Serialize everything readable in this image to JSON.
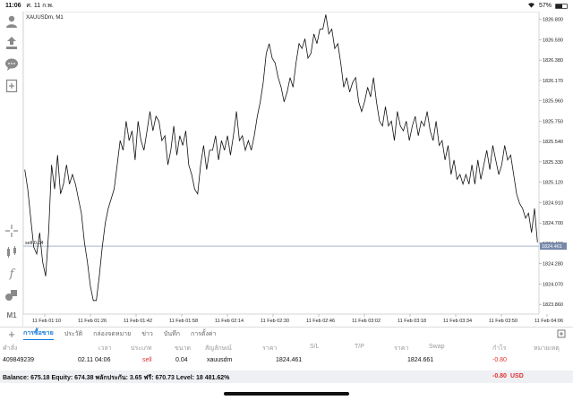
{
  "status": {
    "time": "11:06",
    "date": "ศ. 11 ก.พ.",
    "battery": "57%",
    "battery_level": 0.57
  },
  "toolbar": {
    "icons": [
      "person-icon",
      "trade-icon",
      "chat-icon",
      "add-chart-icon",
      "crosshair-icon",
      "indicators-icon",
      "function-icon",
      "objects-icon"
    ],
    "timeframe": "M1"
  },
  "chart": {
    "symbol_label": "XAUUSDm, M1",
    "sell_line_label": "sell 0.04",
    "current_price": "1824.461",
    "price_ticks": [
      "1826.800",
      "1826.590",
      "1826.380",
      "1826.170",
      "1825.960",
      "1825.750",
      "1825.540",
      "1825.330",
      "1825.120",
      "1824.910",
      "1824.700",
      "1824.490",
      "1824.280",
      "1824.070",
      "1823.860"
    ],
    "time_ticks": [
      "11 Feb 01:10",
      "11 Feb 01:26",
      "11 Feb 01:42",
      "11 Feb 01:58",
      "11 Feb 02:14",
      "11 Feb 02:30",
      "11 Feb 02:46",
      "11 Feb 03:02",
      "11 Feb 03:18",
      "11 Feb 03:34",
      "11 Feb 03:50",
      "11 Feb 04:06"
    ]
  },
  "chart_data": {
    "type": "line",
    "ylim": [
      1823.76,
      1826.88
    ],
    "y": [
      1825.25,
      1825.05,
      1824.75,
      1824.45,
      1824.38,
      1824.6,
      1824.3,
      1824.15,
      1824.6,
      1825.3,
      1825.05,
      1825.4,
      1825.0,
      1825.1,
      1825.3,
      1825.1,
      1825.2,
      1825.1,
      1824.95,
      1824.8,
      1824.5,
      1824.3,
      1824.05,
      1823.9,
      1823.9,
      1824.15,
      1824.45,
      1824.7,
      1824.85,
      1824.95,
      1825.05,
      1825.3,
      1825.55,
      1825.45,
      1825.75,
      1825.55,
      1825.65,
      1825.35,
      1825.75,
      1825.55,
      1825.45,
      1825.65,
      1825.85,
      1825.65,
      1825.8,
      1825.75,
      1825.55,
      1825.6,
      1825.3,
      1825.45,
      1825.7,
      1825.4,
      1825.6,
      1825.5,
      1825.65,
      1825.3,
      1825.2,
      1825.05,
      1825.0,
      1825.3,
      1825.5,
      1825.25,
      1825.45,
      1825.45,
      1825.6,
      1825.35,
      1825.55,
      1825.45,
      1825.6,
      1825.4,
      1825.6,
      1825.85,
      1825.55,
      1825.6,
      1825.45,
      1825.55,
      1825.45,
      1825.6,
      1825.8,
      1825.95,
      1826.15,
      1826.45,
      1826.55,
      1826.4,
      1826.35,
      1826.2,
      1826.1,
      1825.95,
      1826.05,
      1826.2,
      1826.1,
      1826.35,
      1826.55,
      1826.5,
      1826.6,
      1826.4,
      1826.45,
      1826.65,
      1826.55,
      1826.7,
      1826.7,
      1826.85,
      1826.65,
      1826.7,
      1826.5,
      1826.55,
      1826.35,
      1826.1,
      1826.2,
      1826.05,
      1826.15,
      1826.2,
      1825.95,
      1825.85,
      1825.95,
      1826.1,
      1826.0,
      1826.2,
      1825.95,
      1825.75,
      1825.7,
      1825.9,
      1825.7,
      1825.75,
      1825.55,
      1825.85,
      1825.7,
      1825.65,
      1825.75,
      1825.55,
      1825.7,
      1825.8,
      1825.6,
      1825.75,
      1825.7,
      1825.85,
      1825.65,
      1825.55,
      1825.75,
      1825.5,
      1825.55,
      1825.35,
      1825.5,
      1825.2,
      1825.35,
      1825.15,
      1825.2,
      1825.1,
      1825.2,
      1825.1,
      1825.3,
      1825.1,
      1825.35,
      1825.15,
      1825.3,
      1825.45,
      1825.25,
      1825.5,
      1825.35,
      1825.2,
      1825.3,
      1825.5,
      1825.35,
      1825.4,
      1825.2,
      1825.0,
      1824.9,
      1824.85,
      1824.75,
      1824.8,
      1824.6,
      1824.85,
      1824.5
    ]
  },
  "tabs": {
    "add": "+",
    "items": [
      "การซื้อขาย",
      "ประวัติ",
      "กล่องจดหมาย",
      "ข่าว",
      "บันทึก",
      "การตั้งค่า"
    ]
  },
  "orders": {
    "headers": [
      "คำสั่ง",
      "เวลา",
      "ประเภท",
      "ขนาด",
      "สัญลักษณ์",
      "ราคา",
      "S/L",
      "T/P",
      "ราคา",
      "Swap",
      "กำไร",
      "หมายเหตุ"
    ],
    "rows": [
      {
        "order": "409849239",
        "time": "02.11 04:06",
        "type": "sell",
        "size": "0.04",
        "symbol": "xauusdm",
        "price": "1824.461",
        "current": "1824.661",
        "profit": "-0.80"
      }
    ]
  },
  "footer": {
    "balance_text": "Balance: 675.18 Equity: 674.38 พลักประกัน: 3.65 ฟรี: 670.73 Level: 18 481.62%",
    "total_profit": "-0.80",
    "currency": "USD"
  },
  "colors": {
    "accent": "#1a7adb",
    "loss": "#e03030",
    "price_line": "#7788aa"
  }
}
